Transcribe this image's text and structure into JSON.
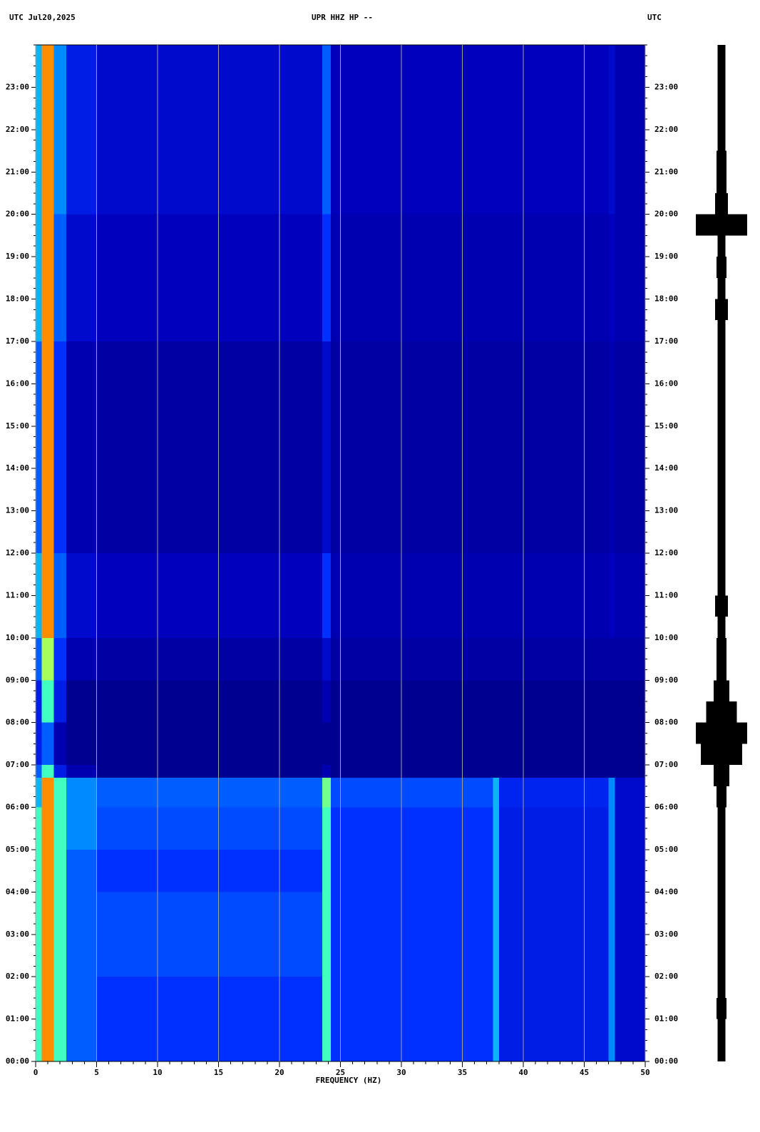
{
  "chart_data": {
    "type": "spectrogram",
    "title_left": "UTC  Jul20,2025",
    "title": "UPR HHZ HP --",
    "title_right": "UTC",
    "x_label": "FREQUENCY (HZ)",
    "xlim": [
      0,
      50
    ],
    "xticks": [
      0,
      5,
      10,
      15,
      20,
      25,
      30,
      35,
      40,
      45,
      50
    ],
    "ylim": [
      0,
      24
    ],
    "yticks": [
      {
        "value": 0,
        "label": "00:00"
      },
      {
        "value": 1,
        "label": "01:00"
      },
      {
        "value": 2,
        "label": "02:00"
      },
      {
        "value": 3,
        "label": "03:00"
      },
      {
        "value": 4,
        "label": "04:00"
      },
      {
        "value": 5,
        "label": "05:00"
      },
      {
        "value": 6,
        "label": "06:00"
      },
      {
        "value": 7,
        "label": "07:00"
      },
      {
        "value": 8,
        "label": "08:00"
      },
      {
        "value": 9,
        "label": "09:00"
      },
      {
        "value": 10,
        "label": "10:00"
      },
      {
        "value": 11,
        "label": "11:00"
      },
      {
        "value": 12,
        "label": "12:00"
      },
      {
        "value": 13,
        "label": "13:00"
      },
      {
        "value": 14,
        "label": "14:00"
      },
      {
        "value": 15,
        "label": "15:00"
      },
      {
        "value": 16,
        "label": "16:00"
      },
      {
        "value": 17,
        "label": "17:00"
      },
      {
        "value": 18,
        "label": "18:00"
      },
      {
        "value": 19,
        "label": "19:00"
      },
      {
        "value": 20,
        "label": "20:00"
      },
      {
        "value": 21,
        "label": "21:00"
      },
      {
        "value": 22,
        "label": "22:00"
      },
      {
        "value": 23,
        "label": "23:00"
      }
    ],
    "grid": true,
    "grid_color": "#a0a0a0",
    "freq_bins": [
      0,
      0.5,
      1.5,
      2.5,
      5,
      23.5,
      24.2,
      37.5,
      38,
      47,
      47.5,
      50
    ],
    "time_bins": [
      0,
      1,
      2,
      3,
      4,
      5,
      6,
      6.7,
      7,
      8,
      9,
      10,
      11,
      12,
      13,
      14,
      15,
      16,
      17,
      18,
      19,
      20,
      21,
      22,
      23,
      24
    ],
    "zlim": [
      0,
      10
    ],
    "colormap": [
      "#000070",
      "#0000c0",
      "#0030ff",
      "#00a0ff",
      "#40ffc0",
      "#c0ff40",
      "#ffc000",
      "#ff4000",
      "#b00000"
    ],
    "z": [
      [
        5,
        8,
        5,
        3,
        2.5,
        5,
        2.5,
        4,
        2,
        3.5,
        1.5
      ],
      [
        5,
        8,
        5,
        3,
        2.5,
        5,
        2.5,
        4,
        2,
        3.5,
        1.5
      ],
      [
        5,
        8,
        5,
        3,
        2.8,
        5,
        2.5,
        4,
        2,
        3.5,
        1.5
      ],
      [
        5,
        8,
        5,
        3,
        2.8,
        5,
        2.5,
        4,
        2,
        3.5,
        1.5
      ],
      [
        5,
        8,
        5,
        3,
        2.5,
        5,
        2.5,
        4,
        2,
        3.5,
        1.5
      ],
      [
        5,
        8,
        5,
        3.5,
        2.8,
        5,
        2.5,
        4,
        2,
        3.5,
        1.5
      ],
      [
        4,
        8,
        5,
        3.5,
        3,
        5.5,
        2.8,
        4,
        2.2,
        3.5,
        1.5
      ],
      [
        3,
        5,
        2,
        1,
        0.5,
        1,
        0.5,
        0.5,
        0.5,
        0.5,
        0.5
      ],
      [
        2,
        3,
        1,
        0.5,
        0.5,
        0.5,
        0.5,
        0.5,
        0.5,
        0.5,
        0.5
      ],
      [
        2,
        5,
        2,
        0.5,
        0.5,
        1,
        0.5,
        0.5,
        0.5,
        0.5,
        0.5
      ],
      [
        3,
        6,
        2.5,
        1,
        0.8,
        1.5,
        0.8,
        0.8,
        0.8,
        0.8,
        0.8
      ],
      [
        4,
        8,
        3,
        1.5,
        1.2,
        2.5,
        1,
        1,
        1,
        1.2,
        1
      ],
      [
        4,
        8,
        3,
        1.5,
        1.2,
        2.5,
        1,
        1,
        1,
        1.2,
        1
      ],
      [
        3,
        8,
        2.5,
        1,
        0.8,
        1.5,
        0.8,
        0.8,
        0.8,
        1,
        0.8
      ],
      [
        3,
        8,
        2.5,
        1,
        0.8,
        1.5,
        0.8,
        0.8,
        0.8,
        1,
        0.8
      ],
      [
        3,
        8,
        2.5,
        1,
        0.8,
        1.5,
        0.8,
        0.8,
        0.8,
        1,
        0.8
      ],
      [
        3,
        8,
        2.5,
        1,
        0.8,
        1.5,
        0.8,
        0.8,
        0.8,
        1,
        0.8
      ],
      [
        3,
        8,
        2.5,
        1,
        0.8,
        1.5,
        0.8,
        0.8,
        0.8,
        1,
        0.8
      ],
      [
        4,
        8,
        3,
        1.5,
        1.2,
        2.5,
        1,
        1,
        1,
        1.2,
        1
      ],
      [
        4,
        8,
        3,
        1.5,
        1.2,
        2.5,
        1,
        1,
        1,
        1.2,
        1
      ],
      [
        4,
        8,
        3,
        1.5,
        1.2,
        2.5,
        1,
        1,
        1,
        1.2,
        1
      ],
      [
        4,
        8,
        3.5,
        2,
        1.5,
        3,
        1.2,
        1.2,
        1.2,
        1.5,
        1
      ],
      [
        4,
        8,
        3.5,
        2,
        1.5,
        3,
        1.2,
        1.2,
        1.2,
        1.5,
        1
      ],
      [
        4,
        8,
        3.5,
        2,
        1.5,
        3,
        1.2,
        1.2,
        1.2,
        1.5,
        1
      ],
      [
        4,
        8,
        3.5,
        2,
        1.5,
        3,
        1.2,
        1.2,
        1.2,
        1.5,
        1
      ]
    ],
    "trace": {
      "color": "#000000",
      "x": [
        0.25,
        0.75,
        1.25,
        1.75,
        2.25,
        2.75,
        3.25,
        3.75,
        4.25,
        4.75,
        5.25,
        5.75,
        6.25,
        6.75,
        7.25,
        7.75,
        8.25,
        8.75,
        9.25,
        9.75,
        10.25,
        10.75,
        11.25,
        11.75,
        12.25,
        12.75,
        13.25,
        13.75,
        14.25,
        14.75,
        15.25,
        15.75,
        16.25,
        16.75,
        17.25,
        17.75,
        18.25,
        18.75,
        19.25,
        19.75,
        20.25,
        20.75,
        21.25,
        21.75,
        22.25,
        22.75,
        23.25,
        23.75
      ],
      "values": [
        1.5,
        1.5,
        2,
        1.5,
        1.5,
        1.5,
        1.5,
        1.5,
        1.5,
        1.5,
        1.5,
        1.5,
        2,
        3,
        8,
        10,
        6,
        3,
        2,
        2,
        1.5,
        2.5,
        1.5,
        1.5,
        1.5,
        1.5,
        1.5,
        1.5,
        1.5,
        1.5,
        1.5,
        1.5,
        1.5,
        1.5,
        1.5,
        2.5,
        1.5,
        2,
        1.5,
        10,
        2.5,
        2,
        2,
        1.5,
        1.5,
        1.5,
        1.5,
        1.5
      ]
    }
  }
}
